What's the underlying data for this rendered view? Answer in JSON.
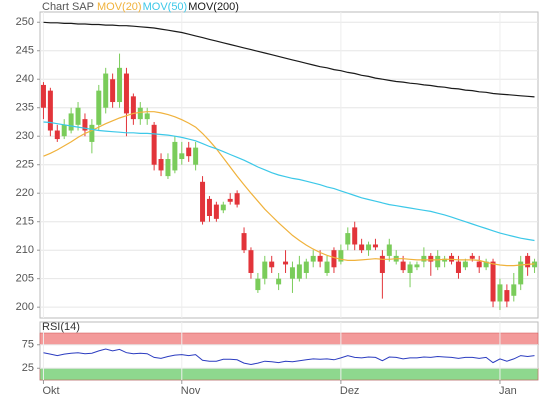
{
  "chart_data": [
    {
      "type": "candlestick",
      "title": "Chart SAP",
      "categories": [
        "Okt",
        null,
        null,
        null,
        null,
        null,
        null,
        null,
        null,
        null,
        null,
        null,
        null,
        null,
        null,
        null,
        null,
        null,
        null,
        null,
        "Nov",
        null,
        null,
        null,
        null,
        null,
        null,
        null,
        null,
        null,
        null,
        null,
        null,
        null,
        null,
        null,
        null,
        null,
        null,
        null,
        null,
        null,
        null,
        "Dez",
        null,
        null,
        null,
        null,
        null,
        null,
        null,
        null,
        null,
        null,
        null,
        null,
        null,
        null,
        null,
        null,
        null,
        null,
        null,
        null,
        null,
        null,
        "Jan",
        null,
        null,
        null,
        null,
        null
      ],
      "open": [
        239,
        238,
        231,
        230,
        231,
        232,
        233,
        229,
        232,
        235,
        240,
        236,
        241,
        237,
        233,
        233,
        232,
        226,
        223,
        224,
        226,
        228,
        225,
        222,
        219,
        218,
        217,
        219,
        220,
        213,
        210,
        203,
        205,
        208,
        204,
        208,
        205,
        205,
        206,
        208,
        209,
        206,
        210,
        208,
        211,
        214,
        211,
        210,
        211,
        209,
        209,
        208,
        208,
        206,
        207,
        208,
        209,
        207,
        208,
        209,
        208,
        207,
        209,
        208,
        207,
        208,
        201,
        203,
        202,
        204,
        209,
        207
      ],
      "high": [
        239.5,
        238.5,
        232,
        233,
        235,
        236,
        234,
        233,
        239,
        242,
        241,
        244.5,
        242,
        237.5,
        236,
        235,
        232.5,
        227,
        227,
        230,
        229,
        229,
        229,
        223,
        219.5,
        218.5,
        218.5,
        220,
        220.5,
        214,
        210.5,
        206,
        209,
        209,
        206,
        210,
        208,
        209,
        208.5,
        210,
        210,
        209,
        210.5,
        211,
        214,
        215,
        212,
        211.5,
        212,
        210,
        212,
        210,
        209,
        208,
        208,
        210.5,
        209.5,
        210,
        209,
        209.5,
        209,
        208.5,
        209.5,
        209,
        208.5,
        208.5,
        205,
        204,
        206,
        209,
        209.5,
        208.5
      ],
      "low": [
        233,
        230,
        229,
        229.5,
        230.5,
        231,
        230,
        227,
        231,
        234,
        235,
        235,
        230,
        232,
        232,
        232,
        224,
        223,
        222.5,
        223.5,
        225,
        225.5,
        224,
        214.5,
        215,
        215,
        216.5,
        218,
        217.5,
        209.5,
        205,
        202.5,
        204,
        206,
        203,
        206,
        202.5,
        204.5,
        205,
        207,
        207,
        205.5,
        206,
        207.5,
        210,
        210,
        209.5,
        209,
        210,
        201.5,
        208,
        207.5,
        206,
        203.5,
        206.5,
        207,
        205.5,
        206.5,
        207,
        207.5,
        205,
        206.5,
        208,
        206,
        206.5,
        200,
        199.5,
        200,
        201,
        203,
        205.5,
        206
      ],
      "close": [
        235,
        231,
        229.5,
        232,
        234,
        235,
        231,
        232,
        238,
        241,
        236,
        242,
        234,
        233,
        235,
        234,
        225,
        224,
        226,
        229,
        227,
        226.5,
        228,
        215,
        216,
        215.5,
        218,
        218.5,
        218,
        210,
        206,
        205,
        208,
        207,
        205,
        207.5,
        207,
        207.5,
        208,
        209,
        208,
        208,
        207,
        210,
        213,
        211,
        210,
        211,
        210.5,
        206,
        211,
        209,
        206.5,
        207.5,
        207.5,
        209,
        208,
        209,
        208.5,
        208,
        206,
        208,
        208.5,
        207,
        208,
        201,
        204,
        201,
        204,
        208,
        207,
        208
      ],
      "up_color": "#7acc5a",
      "down_color": "#e2343a",
      "series": [
        {
          "name": "MOV(20)",
          "color": "#f0b23c",
          "values": [
            226.5,
            227.0,
            227.6,
            228.3,
            229.0,
            229.8,
            230.5,
            231.0,
            231.6,
            232.2,
            232.7,
            233.2,
            233.6,
            234.0,
            234.2,
            234.3,
            234.3,
            234.1,
            233.8,
            233.4,
            232.9,
            232.3,
            231.6,
            230.5,
            229.2,
            227.8,
            226.2,
            224.6,
            223.0,
            221.5,
            220.0,
            218.6,
            217.2,
            216.0,
            214.8,
            213.7,
            212.6,
            211.7,
            210.9,
            210.2,
            209.6,
            209.1,
            208.7,
            208.4,
            208.2,
            208.2,
            208.3,
            208.4,
            208.5,
            208.4,
            208.4,
            208.5,
            208.5,
            208.4,
            208.3,
            208.3,
            208.3,
            208.3,
            208.4,
            208.4,
            208.3,
            208.3,
            208.3,
            208.2,
            207.9,
            207.6,
            207.4,
            207.3,
            207.3,
            207.4,
            207.5,
            207.6
          ]
        },
        {
          "name": "MOV(50)",
          "color": "#3cc8e8",
          "values": [
            232.5,
            232.4,
            232.2,
            232.0,
            231.8,
            231.6,
            231.4,
            231.2,
            231.0,
            230.9,
            230.8,
            230.7,
            230.6,
            230.6,
            230.5,
            230.5,
            230.4,
            230.3,
            230.2,
            230.0,
            229.8,
            229.5,
            229.2,
            228.7,
            228.2,
            227.8,
            227.3,
            226.8,
            226.3,
            225.8,
            225.2,
            224.6,
            224.1,
            223.6,
            223.2,
            222.9,
            222.6,
            222.4,
            222.1,
            221.8,
            221.5,
            221.1,
            220.8,
            220.4,
            220.0,
            219.6,
            219.2,
            218.9,
            218.6,
            218.3,
            218.0,
            217.8,
            217.6,
            217.4,
            217.2,
            217.0,
            216.8,
            216.5,
            216.2,
            215.8,
            215.4,
            215.0,
            214.6,
            214.2,
            213.8,
            213.4,
            213.0,
            212.7,
            212.4,
            212.1,
            211.9,
            211.7
          ]
        },
        {
          "name": "MOV(200)",
          "color": "#1a1a1a",
          "values": [
            250.0,
            249.9,
            249.9,
            249.8,
            249.8,
            249.7,
            249.7,
            249.6,
            249.6,
            249.5,
            249.5,
            249.4,
            249.4,
            249.3,
            249.2,
            249.1,
            249.0,
            248.8,
            248.6,
            248.4,
            248.2,
            247.9,
            247.6,
            247.3,
            247.0,
            246.7,
            246.4,
            246.1,
            245.8,
            245.5,
            245.2,
            244.9,
            244.6,
            244.3,
            244.0,
            243.7,
            243.4,
            243.1,
            242.8,
            242.5,
            242.2,
            242.0,
            241.7,
            241.5,
            241.2,
            241.0,
            240.7,
            240.5,
            240.2,
            240.0,
            239.8,
            239.6,
            239.5,
            239.3,
            239.2,
            239.0,
            238.9,
            238.7,
            238.6,
            238.4,
            238.3,
            238.1,
            238.0,
            237.8,
            237.7,
            237.5,
            237.4,
            237.3,
            237.2,
            237.1,
            237.0,
            236.9
          ]
        }
      ],
      "ylim": [
        198.1,
        251.8
      ],
      "yticks": [
        200,
        205,
        210,
        215,
        220,
        225,
        230,
        235,
        240,
        245,
        250
      ],
      "grid": true
    },
    {
      "type": "line",
      "title": "RSI(14)",
      "color": "#2b3cc0",
      "values": [
        58,
        55,
        52,
        55,
        57,
        58,
        56,
        57,
        62,
        66,
        62,
        65,
        58,
        56,
        57,
        56,
        48,
        46,
        50,
        53,
        54,
        52,
        54,
        42,
        40,
        40,
        44,
        44,
        43,
        36,
        33,
        36,
        40,
        39,
        37,
        40,
        39,
        41,
        43,
        45,
        44,
        45,
        43,
        47,
        52,
        48,
        47,
        49,
        48,
        41,
        49,
        48,
        45,
        47,
        47,
        49,
        48,
        50,
        49,
        48,
        46,
        48,
        48,
        46,
        48,
        37,
        45,
        40,
        45,
        52,
        50,
        52
      ],
      "bands": [
        {
          "from": 75,
          "to": 100,
          "color": "#f39a9a"
        },
        {
          "from": 0,
          "to": 25,
          "color": "#8ed88e"
        }
      ],
      "ylim": [
        0,
        100
      ],
      "yticks": [
        25,
        75
      ],
      "grid": true
    }
  ]
}
